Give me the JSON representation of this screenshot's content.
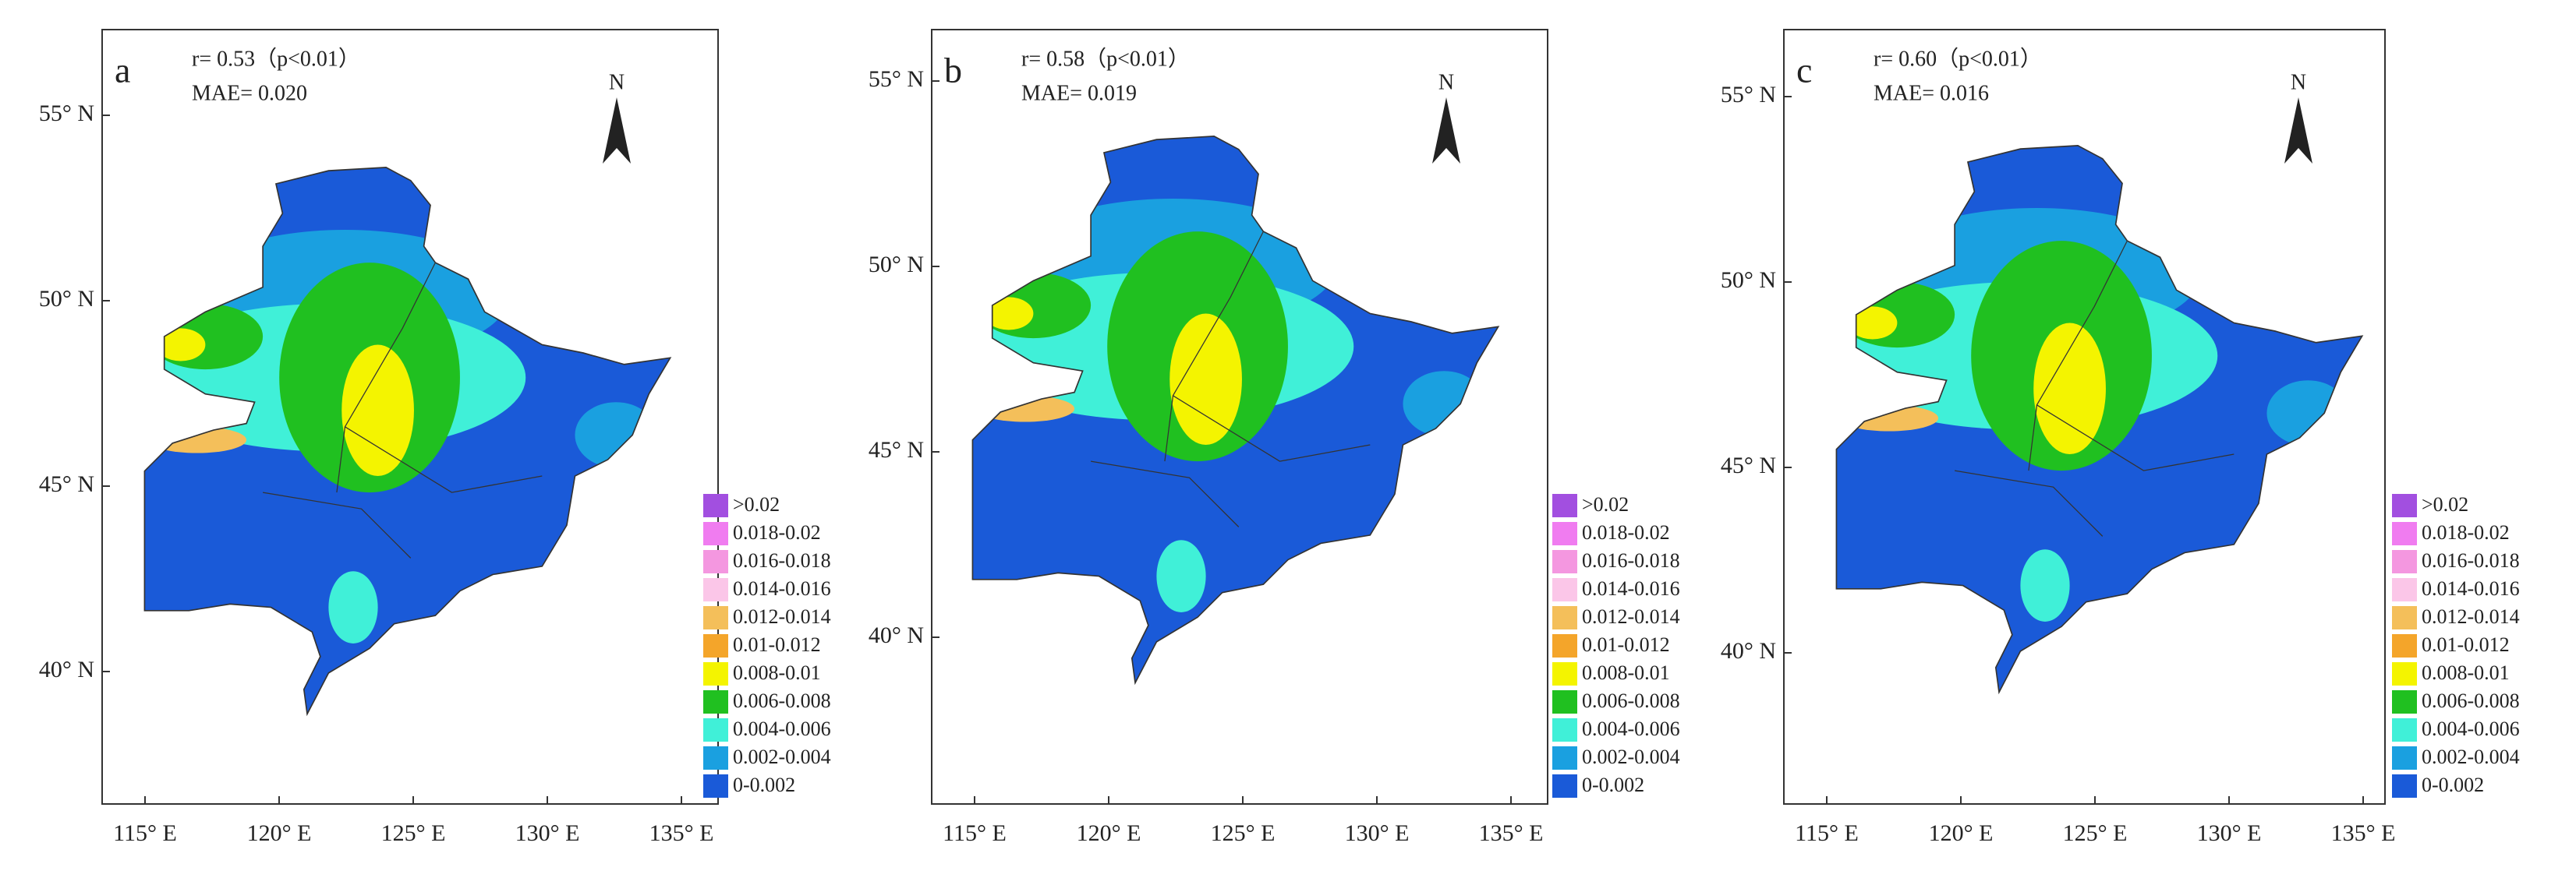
{
  "panels": [
    {
      "label": "a",
      "stats": [
        "r= 0.53（p<0.01）",
        "MAE= 0.020"
      ],
      "north": "N",
      "lat_labels": [
        "55° N",
        "50° N",
        "45° N",
        "40° N"
      ],
      "lon_labels": [
        "115° E",
        "120° E",
        "125° E",
        "130° E",
        "135° E"
      ]
    },
    {
      "label": "b",
      "stats": [
        "r= 0.58（p<0.01）",
        "MAE= 0.019"
      ],
      "north": "N",
      "lat_labels": [
        "55° N",
        "50° N",
        "45° N",
        "40° N"
      ],
      "lon_labels": [
        "115° E",
        "120° E",
        "125° E",
        "130° E",
        "135° E"
      ]
    },
    {
      "label": "c",
      "stats": [
        "r= 0.60（p<0.01）",
        "MAE= 0.016"
      ],
      "north": "N",
      "lat_labels": [
        "55° N",
        "50° N",
        "45° N",
        "40° N"
      ],
      "lon_labels": [
        "115° E",
        "120° E",
        "125° E",
        "130° E",
        "135° E"
      ]
    }
  ],
  "legend": [
    {
      "label": ">0.02",
      "color": "#a24fe0"
    },
    {
      "label": "0.018-0.02",
      "color": "#f07cf0"
    },
    {
      "label": "0.016-0.018",
      "color": "#f497e0"
    },
    {
      "label": "0.014-0.016",
      "color": "#fbc6e8"
    },
    {
      "label": "0.012-0.014",
      "color": "#f4bf5a"
    },
    {
      "label": "0.01-0.012",
      "color": "#f4a52a"
    },
    {
      "label": "0.008-0.01",
      "color": "#f4f400"
    },
    {
      "label": "0.006-0.008",
      "color": "#20c020"
    },
    {
      "label": "0.004-0.006",
      "color": "#40f0d8"
    },
    {
      "label": "0.002-0.004",
      "color": "#1aa0e0"
    },
    {
      "label": "0-0.002",
      "color": "#1a5ad8"
    }
  ]
}
